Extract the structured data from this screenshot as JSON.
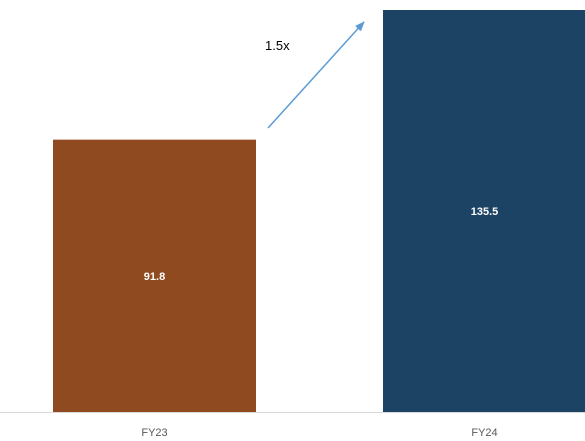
{
  "chart_data": {
    "type": "bar",
    "categories": [
      "FY23",
      "FY24"
    ],
    "values": [
      91.8,
      135.5
    ],
    "data_labels": [
      "91.8",
      "135.5"
    ],
    "bar_colors": [
      "#8f4a1f",
      "#1c4264"
    ],
    "ylim": [
      0,
      135.5
    ],
    "title": "",
    "xlabel": "",
    "ylabel": "",
    "grid": false,
    "axis_color": "#d9d9d9",
    "annotation": {
      "text": "1.5x",
      "arrow": "arrow-up-right",
      "arrow_color": "#5b9bd5"
    }
  }
}
